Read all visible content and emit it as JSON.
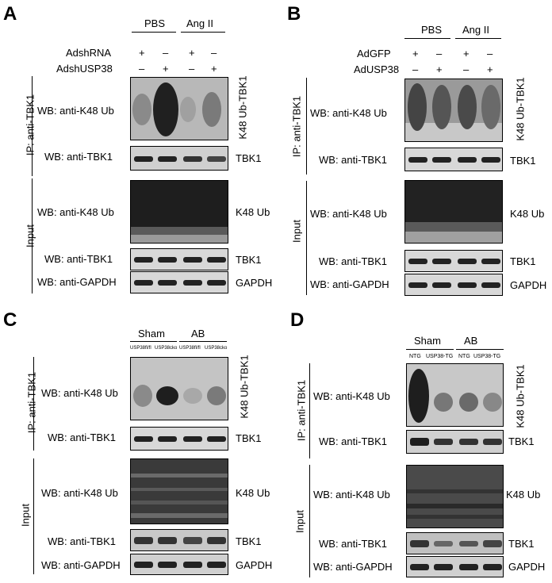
{
  "panels": {
    "A": {
      "letter": "A",
      "groups": [
        "PBS",
        "Ang II"
      ],
      "rows": [
        {
          "label": "AdshRNA",
          "signs": [
            "+",
            "–",
            "+",
            "–"
          ]
        },
        {
          "label": "AdshUSP38",
          "signs": [
            "–",
            "+",
            "–",
            "+"
          ]
        }
      ],
      "ip_label": "IP: anti-TBK1",
      "input_label": "Input",
      "blots": [
        {
          "wb": "WB: anti-K48 Ub",
          "right": "K48 Ub-TBK1"
        },
        {
          "wb": "WB: anti-TBK1",
          "right": "TBK1"
        },
        {
          "wb": "WB: anti-K48 Ub",
          "right": "K48 Ub"
        },
        {
          "wb": "WB: anti-TBK1",
          "right": "TBK1"
        },
        {
          "wb": "WB: anti-GAPDH",
          "right": "GAPDH"
        }
      ]
    },
    "B": {
      "letter": "B",
      "groups": [
        "PBS",
        "Ang II"
      ],
      "rows": [
        {
          "label": "AdGFP",
          "signs": [
            "+",
            "–",
            "+",
            "–"
          ]
        },
        {
          "label": "AdUSP38",
          "signs": [
            "–",
            "+",
            "–",
            "+"
          ]
        }
      ],
      "ip_label": "IP: anti-TBK1",
      "input_label": "Input",
      "blots": [
        {
          "wb": "WB: anti-K48 Ub",
          "right": "K48 Ub-TBK1"
        },
        {
          "wb": "WB: anti-TBK1",
          "right": "TBK1"
        },
        {
          "wb": "WB: anti-K48 Ub",
          "right": "K48 Ub"
        },
        {
          "wb": "WB: anti-TBK1",
          "right": "TBK1"
        },
        {
          "wb": "WB: anti-GAPDH",
          "right": "GAPDH"
        }
      ]
    },
    "C": {
      "letter": "C",
      "groups": [
        "Sham",
        "AB"
      ],
      "lanes": [
        "USP38fl/fl",
        "USP38cko",
        "USP38fl/fl",
        "USP38cko"
      ],
      "ip_label": "IP: anti-TBK1",
      "input_label": "Input",
      "blots": [
        {
          "wb": "WB: anti-K48 Ub",
          "right": "K48 Ub-TBK1"
        },
        {
          "wb": "WB: anti-TBK1",
          "right": "TBK1"
        },
        {
          "wb": "WB: anti-K48 Ub",
          "right": "K48 Ub"
        },
        {
          "wb": "WB: anti-TBK1",
          "right": "TBK1"
        },
        {
          "wb": "WB: anti-GAPDH",
          "right": "GAPDH"
        }
      ]
    },
    "D": {
      "letter": "D",
      "groups": [
        "Sham",
        "AB"
      ],
      "lanes": [
        "NTG",
        "USP38-TG",
        "NTG",
        "USP38-TG"
      ],
      "ip_label": "IP: anti-TBK1",
      "input_label": "Input",
      "blots": [
        {
          "wb": "WB: anti-K48 Ub",
          "right": "K48 Ub-TBK1"
        },
        {
          "wb": "WB: anti-TBK1",
          "right": "TBK1"
        },
        {
          "wb": "WB: anti-K48 Ub",
          "right": "K48 Ub"
        },
        {
          "wb": "WB: anti-TBK1",
          "right": "TBK1"
        },
        {
          "wb": "WB: anti-GAPDH",
          "right": "GAPDH"
        }
      ]
    }
  }
}
